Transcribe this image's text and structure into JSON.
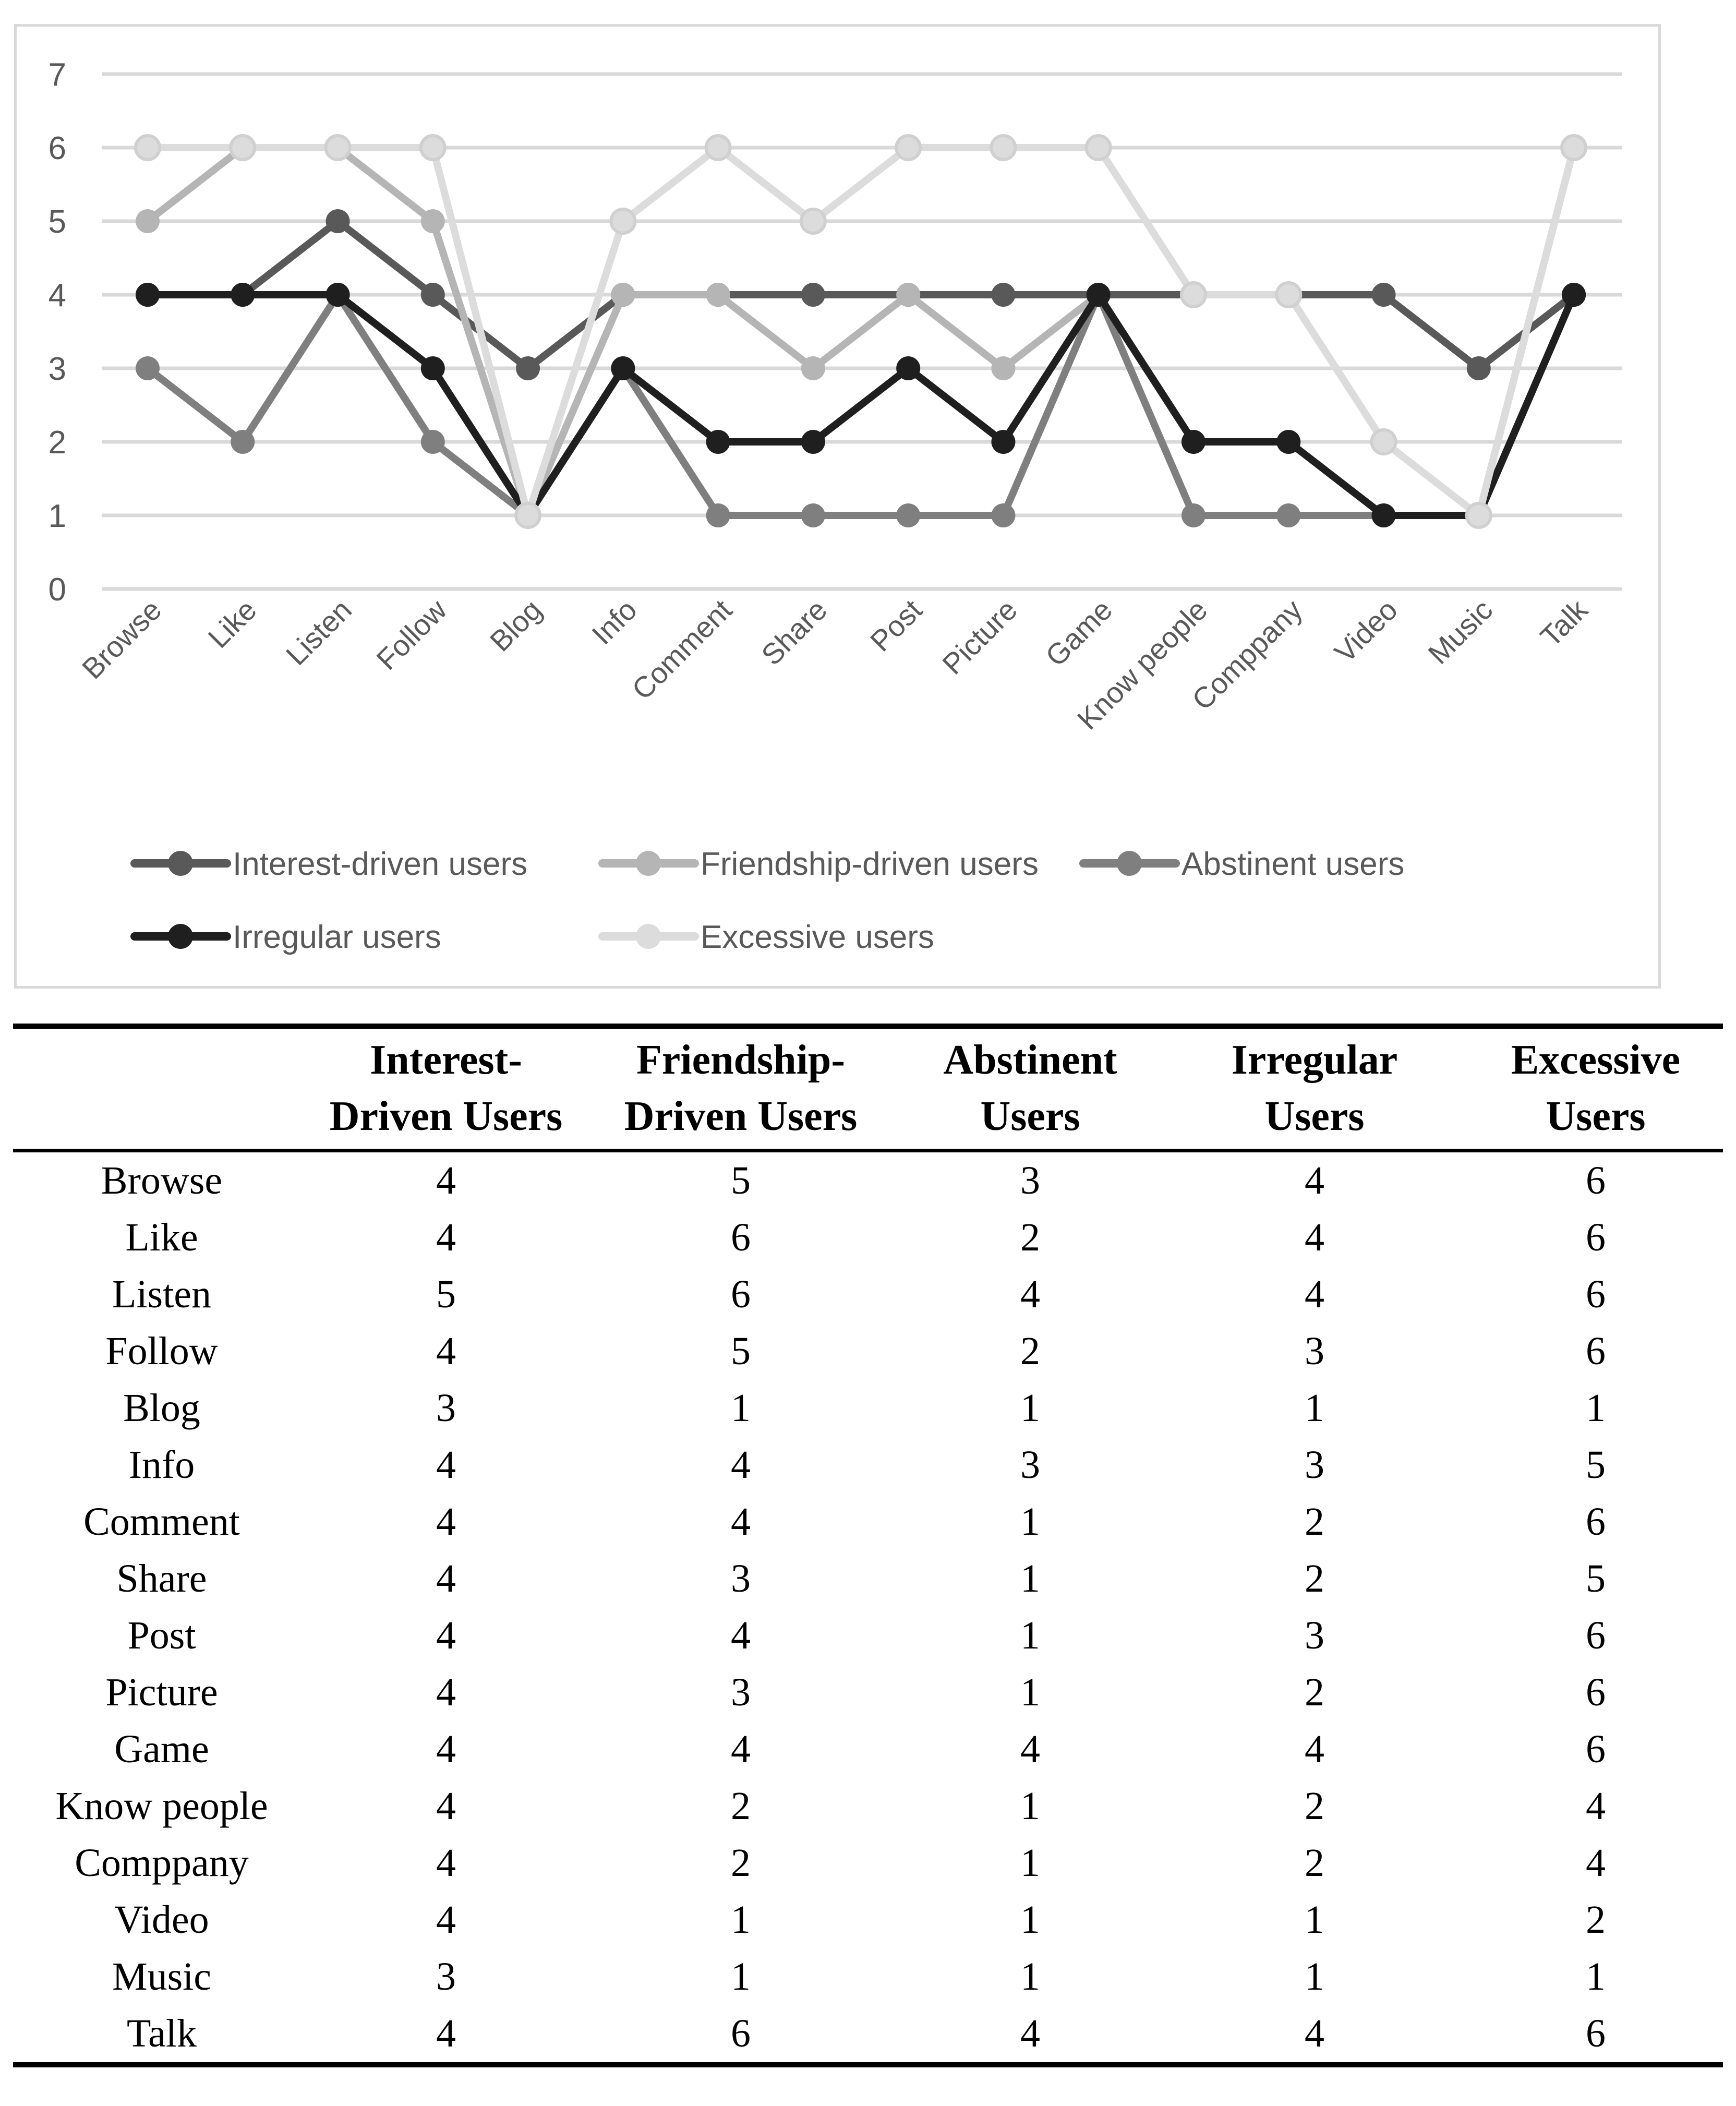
{
  "figure": {
    "background": "#ffffff",
    "border_color": "#d9d9d9",
    "grid_color": "#d9d9d9",
    "axis_text_color": "#595959"
  },
  "chart_data": {
    "type": "line",
    "title": "",
    "xlabel": "",
    "ylabel": "",
    "categories": [
      "Browse",
      "Like",
      "Listen",
      "Follow",
      "Blog",
      "Info",
      "Comment",
      "Share",
      "Post",
      "Picture",
      "Game",
      "Know people",
      "Comppany",
      "Video",
      "Music",
      "Talk"
    ],
    "series": [
      {
        "name": "Interest-driven users",
        "color": "#595959",
        "values": [
          4,
          4,
          5,
          4,
          3,
          4,
          4,
          4,
          4,
          4,
          4,
          4,
          4,
          4,
          3,
          4
        ]
      },
      {
        "name": "Friendship-driven users",
        "color": "#b5b5b5",
        "values": [
          5,
          6,
          6,
          5,
          1,
          4,
          4,
          3,
          4,
          3,
          4,
          2,
          2,
          1,
          1,
          6
        ]
      },
      {
        "name": "Abstinent users",
        "color": "#7f7f7f",
        "values": [
          3,
          2,
          4,
          2,
          1,
          3,
          1,
          1,
          1,
          1,
          4,
          1,
          1,
          1,
          1,
          4
        ]
      },
      {
        "name": "Irregular users",
        "color": "#1f1f1f",
        "values": [
          4,
          4,
          4,
          3,
          1,
          3,
          2,
          2,
          3,
          2,
          4,
          2,
          2,
          1,
          1,
          4
        ]
      },
      {
        "name": "Excessive users",
        "color": "#dcdcdc",
        "values": [
          6,
          6,
          6,
          6,
          1,
          5,
          6,
          5,
          6,
          6,
          6,
          4,
          4,
          2,
          1,
          6
        ]
      }
    ],
    "ylim": [
      0,
      7
    ],
    "y_ticks": [
      0,
      1,
      2,
      3,
      4,
      5,
      6,
      7
    ],
    "grid": true,
    "legend_position": "bottom-inside",
    "legend_rows": [
      [
        "Interest-driven users",
        "Friendship-driven users",
        "Abstinent users"
      ],
      [
        "Irregular users",
        "Excessive users"
      ]
    ]
  },
  "table": {
    "header_columns": [
      {
        "line1": "Interest-",
        "line2": "Driven Users"
      },
      {
        "line1": "Friendship-",
        "line2": "Driven Users"
      },
      {
        "line1": "Abstinent",
        "line2": "Users"
      },
      {
        "line1": "Irregular",
        "line2": "Users"
      },
      {
        "line1": "Excessive",
        "line2": "Users"
      }
    ],
    "rows": [
      {
        "label": "Browse",
        "values": [
          4,
          5,
          3,
          4,
          6
        ]
      },
      {
        "label": "Like",
        "values": [
          4,
          6,
          2,
          4,
          6
        ]
      },
      {
        "label": "Listen",
        "values": [
          5,
          6,
          4,
          4,
          6
        ]
      },
      {
        "label": "Follow",
        "values": [
          4,
          5,
          2,
          3,
          6
        ]
      },
      {
        "label": "Blog",
        "values": [
          3,
          1,
          1,
          1,
          1
        ]
      },
      {
        "label": "Info",
        "values": [
          4,
          4,
          3,
          3,
          5
        ]
      },
      {
        "label": "Comment",
        "values": [
          4,
          4,
          1,
          2,
          6
        ]
      },
      {
        "label": "Share",
        "values": [
          4,
          3,
          1,
          2,
          5
        ]
      },
      {
        "label": "Post",
        "values": [
          4,
          4,
          1,
          3,
          6
        ]
      },
      {
        "label": "Picture",
        "values": [
          4,
          3,
          1,
          2,
          6
        ]
      },
      {
        "label": "Game",
        "values": [
          4,
          4,
          4,
          4,
          6
        ]
      },
      {
        "label": "Know people",
        "values": [
          4,
          2,
          1,
          2,
          4
        ]
      },
      {
        "label": "Comppany",
        "values": [
          4,
          2,
          1,
          2,
          4
        ]
      },
      {
        "label": "Video",
        "values": [
          4,
          1,
          1,
          1,
          2
        ]
      },
      {
        "label": "Music",
        "values": [
          3,
          1,
          1,
          1,
          1
        ]
      },
      {
        "label": "Talk",
        "values": [
          4,
          6,
          4,
          4,
          6
        ]
      }
    ]
  }
}
